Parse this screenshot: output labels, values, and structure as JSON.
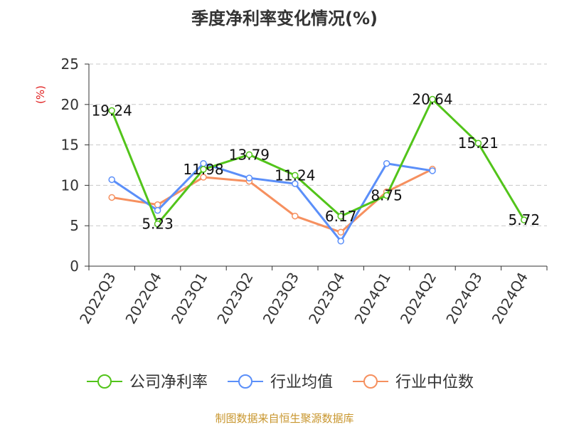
{
  "chart_data": {
    "type": "line",
    "title": "季度净利率变化情况(%)",
    "ylabel": "(%)",
    "ylim": [
      0,
      25
    ],
    "yticks": [
      0,
      5,
      10,
      15,
      20,
      25
    ],
    "grid": true,
    "legend_position": "bottom",
    "categories": [
      "2022Q3",
      "2022Q4",
      "2023Q1",
      "2023Q2",
      "2023Q3",
      "2023Q4",
      "2024Q1",
      "2024Q2",
      "2024Q3",
      "2024Q4"
    ],
    "series": [
      {
        "name": "公司净利率",
        "color": "#52c41a",
        "values": [
          19.24,
          5.23,
          11.98,
          13.79,
          11.24,
          6.17,
          8.75,
          20.64,
          15.21,
          5.72
        ],
        "labels": [
          "19.24",
          "5.23",
          "11.98",
          "13.79",
          "11.24",
          "6.17",
          "8.75",
          "20.64",
          "15.21",
          "5.72"
        ]
      },
      {
        "name": "行业均值",
        "color": "#5b8ff9",
        "values": [
          10.7,
          6.9,
          12.7,
          10.9,
          10.2,
          3.1,
          12.7,
          11.8,
          null,
          null
        ]
      },
      {
        "name": "行业中位数",
        "color": "#f6905f",
        "values": [
          8.5,
          7.6,
          11.0,
          10.5,
          6.2,
          4.2,
          9.2,
          12.0,
          null,
          null
        ]
      }
    ]
  },
  "source_text": "制图数据来自恒生聚源数据库"
}
